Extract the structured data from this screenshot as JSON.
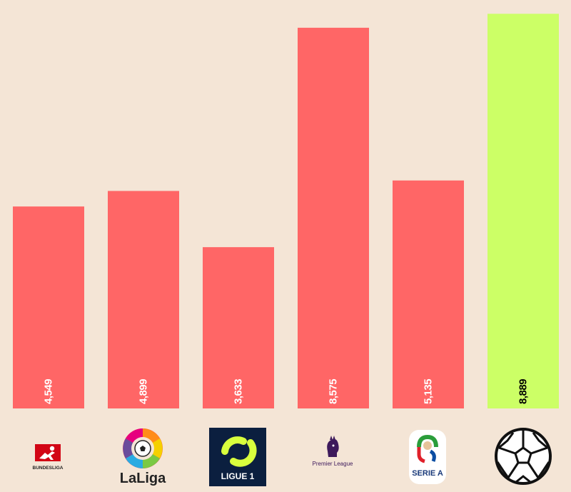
{
  "chart_data": {
    "type": "bar",
    "title": "",
    "xlabel": "",
    "ylabel": "",
    "ylim": [
      0,
      9200
    ],
    "grid": false,
    "legend": "none",
    "categories": [
      {
        "name": "bundesliga",
        "icon": "bundesliga-logo-icon",
        "logo_text": "BUNDESLIGA"
      },
      {
        "name": "laliga",
        "icon": "laliga-logo-icon",
        "logo_text": "LaLiga"
      },
      {
        "name": "ligue-1",
        "icon": "ligue1-logo-icon",
        "logo_text": "LIGUE 1"
      },
      {
        "name": "premier-league",
        "icon": "premier-league-logo-icon",
        "logo_text": "Premier League"
      },
      {
        "name": "serie-a",
        "icon": "serie-a-logo-icon",
        "logo_text": "SERIE A"
      },
      {
        "name": "football",
        "icon": "soccer-ball-icon",
        "logo_text": ""
      }
    ],
    "values": [
      4549,
      4899,
      3633,
      8575,
      5135,
      8889
    ],
    "value_labels": [
      "4,549",
      "4,899",
      "3,633",
      "8,575",
      "5,135",
      "8,889"
    ],
    "colors": {
      "default_bar": "#ff6666",
      "highlight_bar": "#ccff66",
      "background": "#f4e5d6",
      "label_default": "#ffffff",
      "label_highlight": "#000000"
    },
    "highlight_index": 5
  }
}
